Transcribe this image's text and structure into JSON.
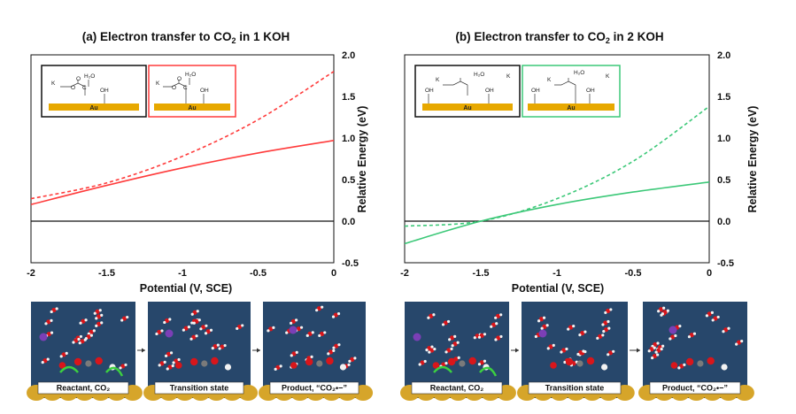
{
  "chart_data": [
    {
      "type": "line",
      "title": "(a) Electron transfer to CO",
      "title_sub": "2",
      "title_tail": " in 1 KOH",
      "xlabel": "Potential (V, SCE)",
      "ylabel": "Relative Energy (eV)",
      "xlim": [
        -2,
        0
      ],
      "ylim": [
        -0.5,
        2.0
      ],
      "x_ticks": [
        "-2",
        "-1.5",
        "-1",
        "-0.5",
        "0"
      ],
      "y_ticks": [
        "-0.5",
        "0.0",
        "0.5",
        "1.0",
        "1.5",
        "2.0"
      ],
      "color": "#ff3b3b",
      "series": [
        {
          "style": "solid",
          "x": [
            -2,
            -1.5,
            -1,
            -0.5,
            0
          ],
          "y": [
            0.2,
            0.43,
            0.64,
            0.82,
            0.97
          ]
        },
        {
          "style": "dashed",
          "x": [
            -2,
            -1.5,
            -1,
            -0.5,
            0
          ],
          "y": [
            0.27,
            0.46,
            0.78,
            1.22,
            1.8
          ]
        }
      ],
      "insets": [
        {
          "border": "#111111",
          "labels": [
            "K",
            "H₂O",
            "OH",
            "Au"
          ]
        },
        {
          "border": "#ff3b3b",
          "labels": [
            "K",
            "H₂O",
            "OH",
            "Au"
          ]
        }
      ],
      "snapshots": [
        "Reactant, CO₂",
        "Transition state",
        "Product, “CO₂•−”"
      ]
    },
    {
      "type": "line",
      "title": "(b) Electron transfer to CO",
      "title_sub": "2",
      "title_tail": " in 2 KOH",
      "xlabel": "Potential (V, SCE)",
      "ylabel": "Relative Energy (eV)",
      "xlim": [
        -2,
        0
      ],
      "ylim": [
        -0.5,
        2.0
      ],
      "x_ticks": [
        "-2",
        "-1.5",
        "-1",
        "-0.5",
        "0"
      ],
      "y_ticks": [
        "-0.5",
        "0.0",
        "0.5",
        "1.0",
        "1.5",
        "2.0"
      ],
      "color": "#3cc878",
      "series": [
        {
          "style": "solid",
          "x": [
            -2,
            -1.5,
            -1,
            -0.5,
            0
          ],
          "y": [
            -0.27,
            0.0,
            0.2,
            0.35,
            0.47
          ]
        },
        {
          "style": "dashed",
          "x": [
            -2,
            -1.5,
            -1,
            -0.5,
            0
          ],
          "y": [
            -0.06,
            0.0,
            0.27,
            0.72,
            1.38
          ]
        }
      ],
      "insets": [
        {
          "border": "#111111",
          "labels": [
            "K",
            "H₂O",
            "OH",
            "Au"
          ]
        },
        {
          "border": "#3cc878",
          "labels": [
            "K",
            "H₂O",
            "OH",
            "Au"
          ]
        }
      ],
      "snapshots": [
        "Reactant, CO₂",
        "Transition state",
        "Product, “CO₂•−”"
      ]
    }
  ],
  "colors": {
    "water": "#27476b",
    "gold": "#d6a52a",
    "oxygen": "#d8161b",
    "carbon": "#7a7a7a",
    "potassium": "#7b3fb6",
    "hydrogen": "#f2f2f2"
  }
}
